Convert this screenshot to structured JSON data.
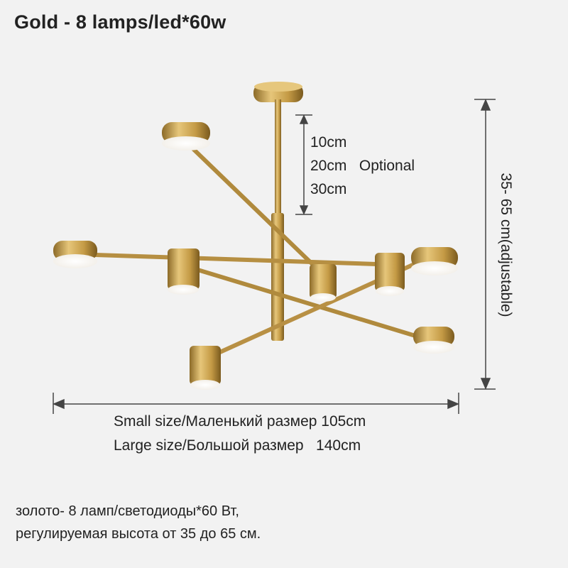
{
  "title": "Gold - 8 lamps/led*60w",
  "drop_options": {
    "line1": "10cm",
    "line2": "20cm   Optional",
    "line3": "30cm"
  },
  "height_label": "35- 65 cm(adjustable)",
  "sizes": {
    "small": "Small size/Маленький размер 105cm",
    "large": "Large size/Большой размер   140cm"
  },
  "description": {
    "line1": "золото- 8 ламп/светодиоды*60 Вт,",
    "line2": "регулируемая высота от 35 до 65 см."
  },
  "colors": {
    "gold": "#c9a553",
    "background": "#f2f2f2",
    "text": "#222222"
  }
}
